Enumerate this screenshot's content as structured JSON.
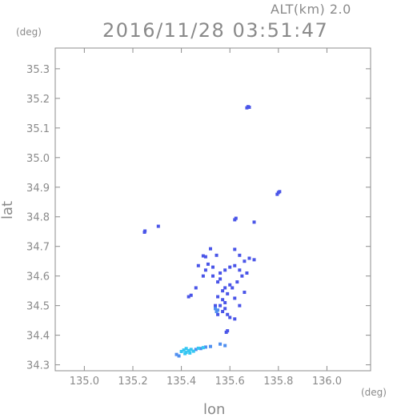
{
  "header": {
    "alt_label": "ALT(km) 2.0",
    "datetime": "2016/11/28 03:51:47"
  },
  "axes": {
    "x_label": "lon",
    "x_unit": "(deg)",
    "y_label": "lat",
    "y_unit": "(deg)"
  },
  "colors": {
    "frame": "#8c8c8c",
    "dark_blue": "#4a55e8",
    "mid_blue": "#4f8ff0",
    "cyan": "#35c6f2"
  },
  "chart_data": {
    "type": "scatter",
    "title": "2016/11/28 03:51:47",
    "xlabel": "lon",
    "ylabel": "lat",
    "xlim": [
      134.88,
      136.18
    ],
    "ylim": [
      34.28,
      35.37
    ],
    "grid": false,
    "x_ticks": [
      "135.0",
      "135.2",
      "135.4",
      "135.6",
      "135.8",
      "136.0"
    ],
    "y_ticks": [
      "34.3",
      "34.4",
      "34.5",
      "34.6",
      "34.7",
      "34.8",
      "34.9",
      "35.0",
      "35.1",
      "35.2",
      "35.3"
    ],
    "x_tick_values": [
      135.0,
      135.2,
      135.4,
      135.6,
      135.8,
      136.0
    ],
    "y_tick_values": [
      34.3,
      34.4,
      34.5,
      34.6,
      34.7,
      34.8,
      34.9,
      35.0,
      35.1,
      35.2,
      35.3
    ],
    "series": [
      {
        "color": "dark_blue",
        "points": [
          [
            135.675,
            35.172
          ],
          [
            135.68,
            35.17
          ],
          [
            135.67,
            35.168
          ],
          [
            135.8,
            34.882
          ],
          [
            135.795,
            34.876
          ],
          [
            135.805,
            34.885
          ],
          [
            135.625,
            34.795
          ],
          [
            135.62,
            34.79
          ],
          [
            135.7,
            34.782
          ],
          [
            135.305,
            34.768
          ],
          [
            135.25,
            34.752
          ],
          [
            135.248,
            34.748
          ],
          [
            135.52,
            34.692
          ],
          [
            135.545,
            34.67
          ],
          [
            135.5,
            34.665
          ],
          [
            135.49,
            34.668
          ],
          [
            135.62,
            34.69
          ],
          [
            135.64,
            34.67
          ],
          [
            135.66,
            34.65
          ],
          [
            135.68,
            34.66
          ],
          [
            135.7,
            34.655
          ],
          [
            135.51,
            34.64
          ],
          [
            135.53,
            34.63
          ],
          [
            135.5,
            34.62
          ],
          [
            135.47,
            34.635
          ],
          [
            135.49,
            34.6
          ],
          [
            135.56,
            34.61
          ],
          [
            135.58,
            34.62
          ],
          [
            135.6,
            34.63
          ],
          [
            135.62,
            34.635
          ],
          [
            135.64,
            34.62
          ],
          [
            135.65,
            34.6
          ],
          [
            135.67,
            34.61
          ],
          [
            135.63,
            34.58
          ],
          [
            135.6,
            34.57
          ],
          [
            135.58,
            34.56
          ],
          [
            135.56,
            34.59
          ],
          [
            135.55,
            34.58
          ],
          [
            135.57,
            34.55
          ],
          [
            135.59,
            34.54
          ],
          [
            135.61,
            34.56
          ],
          [
            135.55,
            34.53
          ],
          [
            135.57,
            34.52
          ],
          [
            135.58,
            34.51
          ],
          [
            135.56,
            34.5
          ],
          [
            135.54,
            34.5
          ],
          [
            135.58,
            34.49
          ],
          [
            135.57,
            34.48
          ],
          [
            135.59,
            34.47
          ],
          [
            135.55,
            34.47
          ],
          [
            135.6,
            34.46
          ],
          [
            135.62,
            34.455
          ],
          [
            135.43,
            34.53
          ],
          [
            135.44,
            34.535
          ],
          [
            135.46,
            34.56
          ],
          [
            135.64,
            34.5
          ],
          [
            135.585,
            34.41
          ],
          [
            135.59,
            34.415
          ],
          [
            135.66,
            34.545
          ],
          [
            135.62,
            34.525
          ],
          [
            135.53,
            34.6
          ]
        ]
      },
      {
        "color": "mid_blue",
        "points": [
          [
            135.54,
            34.49
          ],
          [
            135.545,
            34.48
          ],
          [
            135.55,
            34.485
          ],
          [
            135.48,
            34.355
          ],
          [
            135.5,
            34.36
          ],
          [
            135.52,
            34.362
          ],
          [
            135.46,
            34.352
          ],
          [
            135.56,
            34.37
          ],
          [
            135.58,
            34.365
          ],
          [
            135.38,
            34.335
          ],
          [
            135.39,
            34.33
          ]
        ]
      },
      {
        "color": "cyan",
        "points": [
          [
            135.4,
            34.345
          ],
          [
            135.41,
            34.35
          ],
          [
            135.42,
            34.342
          ],
          [
            135.43,
            34.348
          ],
          [
            135.44,
            34.352
          ],
          [
            135.45,
            34.346
          ],
          [
            135.42,
            34.355
          ],
          [
            135.415,
            34.338
          ],
          [
            135.435,
            34.34
          ],
          [
            135.47,
            34.356
          ],
          [
            135.49,
            34.358
          ]
        ]
      }
    ]
  }
}
